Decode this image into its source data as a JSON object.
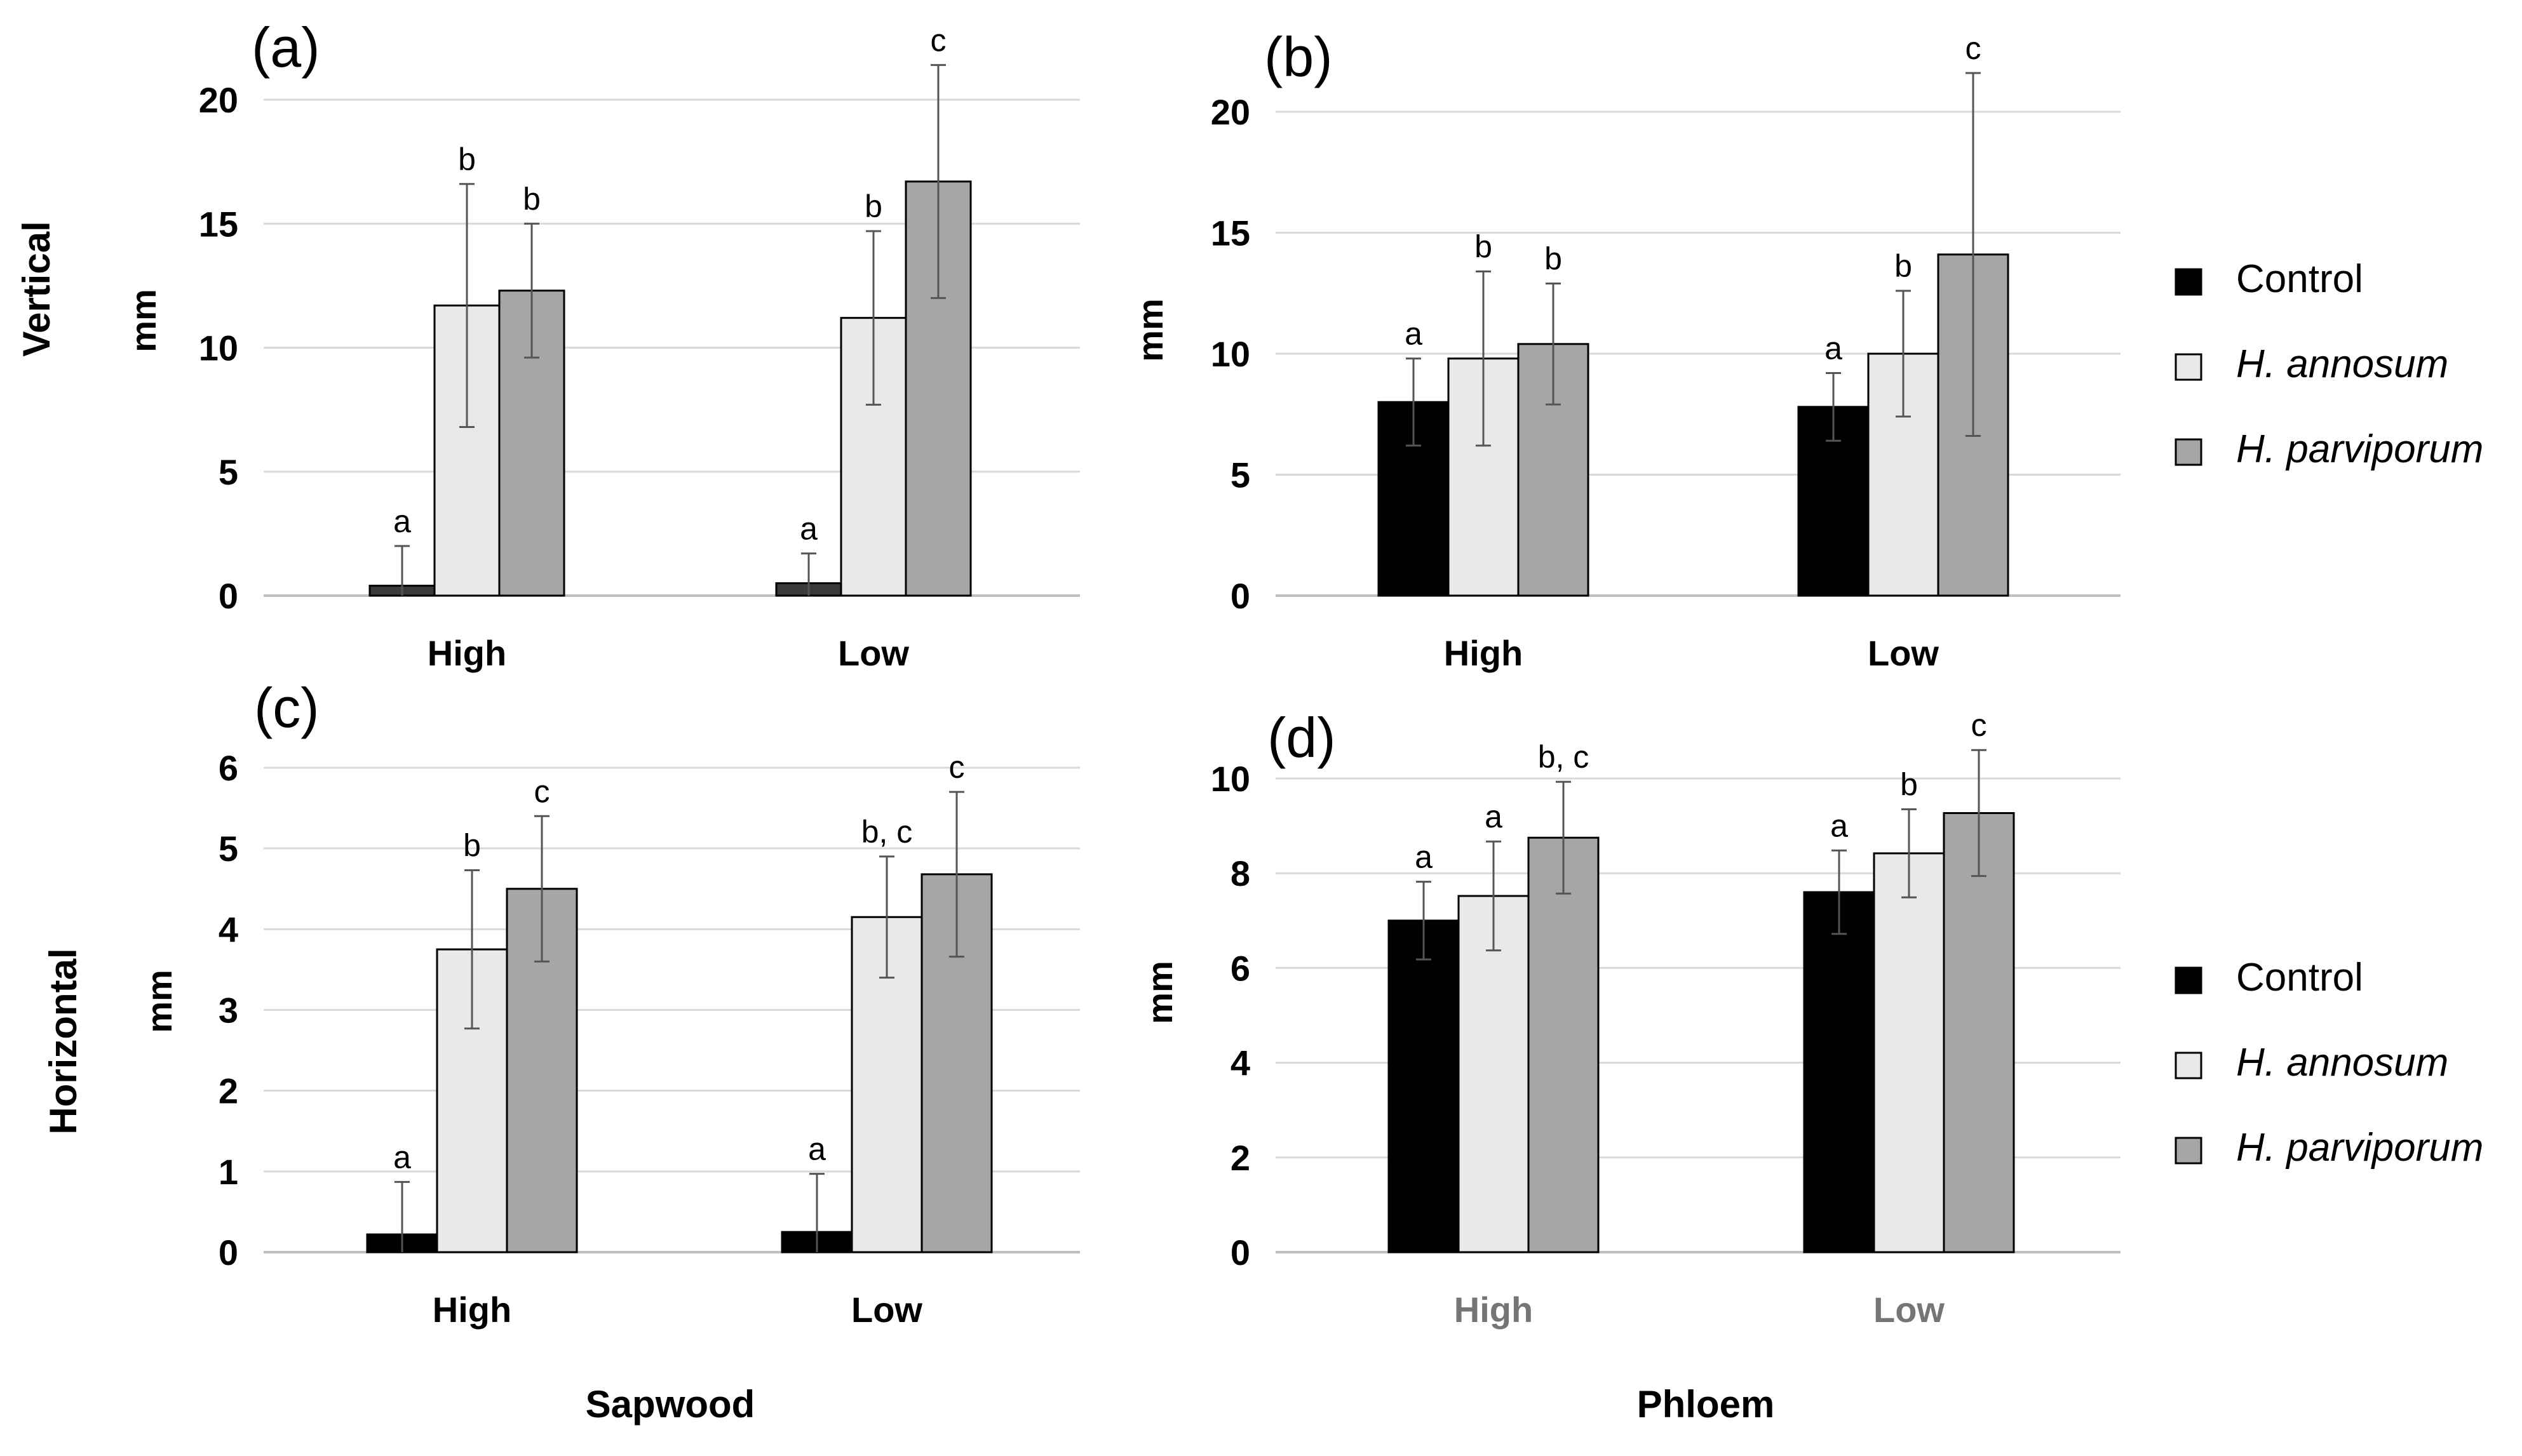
{
  "colors": {
    "control": "#000000",
    "annosum": "#e9e9e9",
    "parviporum": "#a6a6a6",
    "control_sapwood_a": "#3a3a3a",
    "grid": "#d9d9d9",
    "axis": "#bfbfbf",
    "error": "#555555"
  },
  "labels": {
    "row_vertical": "Vertical",
    "row_horizontal": "Horizontal",
    "col_sapwood": "Sapwood",
    "col_phloem": "Phloem",
    "unit": "mm"
  },
  "legend_top": [
    {
      "name": "Control",
      "italic": false
    },
    {
      "name": "H. annosum",
      "italic": true
    },
    {
      "name": "H. parviporum",
      "italic": true
    }
  ],
  "legend_bottom": [
    {
      "name": "Control",
      "italic": false
    },
    {
      "name": "H. annosum",
      "italic": true
    },
    {
      "name": "H. parviporum",
      "italic": true
    }
  ],
  "chart_data": [
    {
      "panel": "(a)",
      "type": "bar",
      "row": "Vertical",
      "column": "Sapwood",
      "categories": [
        "High",
        "Low"
      ],
      "ylabel": "mm",
      "ylim": [
        0,
        20
      ],
      "yticks": [
        0,
        5,
        10,
        15,
        20
      ],
      "series": [
        {
          "name": "Control",
          "values": [
            0.4,
            0.5
          ],
          "errors": [
            1.6,
            1.2
          ],
          "letters": [
            "a",
            "a"
          ]
        },
        {
          "name": "H. annosum",
          "values": [
            11.7,
            11.2
          ],
          "errors": [
            4.9,
            3.5
          ],
          "letters": [
            "b",
            "b"
          ]
        },
        {
          "name": "H. parviporum",
          "values": [
            12.3,
            16.7
          ],
          "errors": [
            2.7,
            4.7
          ],
          "letters": [
            "b",
            "c"
          ]
        }
      ]
    },
    {
      "panel": "(b)",
      "type": "bar",
      "row": "Vertical",
      "column": "Phloem",
      "categories": [
        "High",
        "Low"
      ],
      "ylabel": "mm",
      "ylim": [
        0,
        20
      ],
      "yticks": [
        0,
        5,
        10,
        15,
        20
      ],
      "series": [
        {
          "name": "Control",
          "values": [
            8.0,
            7.8
          ],
          "errors": [
            1.8,
            1.4
          ],
          "letters": [
            "a",
            "a"
          ]
        },
        {
          "name": "H. annosum",
          "values": [
            9.8,
            10.0
          ],
          "errors": [
            3.6,
            2.6
          ],
          "letters": [
            "b",
            "b"
          ]
        },
        {
          "name": "H. parviporum",
          "values": [
            10.4,
            14.1
          ],
          "errors": [
            2.5,
            7.5
          ],
          "letters": [
            "b",
            "c"
          ]
        }
      ]
    },
    {
      "panel": "(c)",
      "type": "bar",
      "row": "Horizontal",
      "column": "Sapwood",
      "categories": [
        "High",
        "Low"
      ],
      "ylabel": "mm",
      "ylim": [
        0,
        6
      ],
      "yticks": [
        0,
        1,
        2,
        3,
        4,
        5,
        6
      ],
      "series": [
        {
          "name": "Control",
          "values": [
            0.22,
            0.25
          ],
          "errors": [
            0.65,
            0.72
          ],
          "letters": [
            "a",
            "a"
          ]
        },
        {
          "name": "H. annosum",
          "values": [
            3.75,
            4.15
          ],
          "errors": [
            0.98,
            0.75
          ],
          "letters": [
            "b",
            "b, c"
          ]
        },
        {
          "name": "H. parviporum",
          "values": [
            4.5,
            4.68
          ],
          "errors": [
            0.9,
            1.02
          ],
          "letters": [
            "c",
            "c"
          ]
        }
      ]
    },
    {
      "panel": "(d)",
      "type": "bar",
      "row": "Horizontal",
      "column": "Phloem",
      "categories": [
        "High",
        "Low"
      ],
      "category_color": "#757575",
      "ylabel": "mm",
      "ylim": [
        0,
        10
      ],
      "yticks": [
        0,
        2,
        4,
        6,
        8,
        10
      ],
      "series": [
        {
          "name": "Control",
          "values": [
            7.0,
            7.6
          ],
          "errors": [
            0.82,
            0.88
          ],
          "letters": [
            "a",
            "a"
          ]
        },
        {
          "name": "H. annosum",
          "values": [
            7.52,
            8.42
          ],
          "errors": [
            1.15,
            0.93
          ],
          "letters": [
            "a",
            "b"
          ]
        },
        {
          "name": "H. parviporum",
          "values": [
            8.75,
            9.27
          ],
          "errors": [
            1.18,
            1.33
          ],
          "letters": [
            "b, c",
            "c"
          ]
        }
      ]
    }
  ]
}
